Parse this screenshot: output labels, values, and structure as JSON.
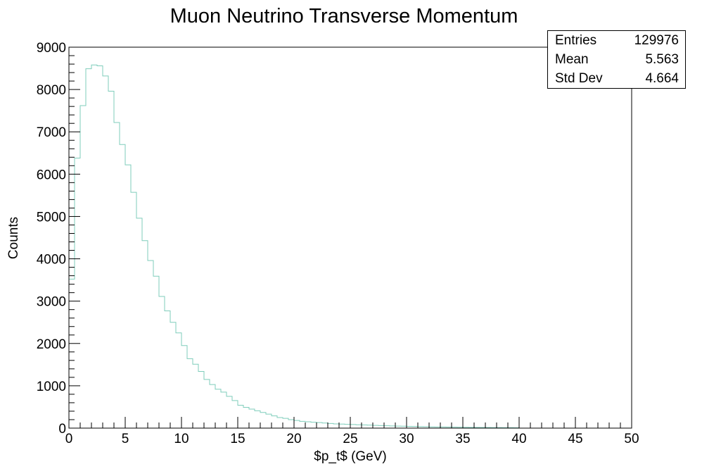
{
  "chart_data": {
    "type": "histogram",
    "title": "Muon Neutrino Transverse Momentum",
    "xlabel": "$p_t$ (GeV)",
    "ylabel": "Counts",
    "xlim": [
      0,
      50
    ],
    "ylim": [
      0,
      9000
    ],
    "bin_width": 0.5,
    "x_ticks": [
      0,
      5,
      10,
      15,
      20,
      25,
      30,
      35,
      40,
      45,
      50
    ],
    "y_ticks": [
      0,
      1000,
      2000,
      3000,
      4000,
      5000,
      6000,
      7000,
      8000,
      9000
    ],
    "line_color": "#7fcdbb",
    "bin_values": [
      3520,
      6380,
      7620,
      8490,
      8580,
      8560,
      8320,
      7960,
      7220,
      6700,
      6220,
      5570,
      4960,
      4430,
      3960,
      3590,
      3110,
      2770,
      2500,
      2250,
      1950,
      1640,
      1510,
      1340,
      1150,
      1030,
      920,
      850,
      750,
      650,
      540,
      490,
      450,
      410,
      370,
      330,
      290,
      250,
      230,
      200,
      180,
      160,
      150,
      140,
      130,
      120,
      110,
      100,
      95,
      90,
      85,
      80,
      75,
      70,
      65,
      60,
      56,
      52,
      48,
      45,
      42,
      39,
      36,
      33,
      30,
      28,
      26,
      24,
      22,
      20,
      18,
      17,
      16,
      15,
      14,
      13,
      12,
      11,
      10,
      9
    ]
  },
  "stats": {
    "entries_label": "Entries",
    "entries_value": "129976",
    "mean_label": "Mean",
    "mean_value": "5.563",
    "stddev_label": "Std Dev",
    "stddev_value": "4.664"
  }
}
